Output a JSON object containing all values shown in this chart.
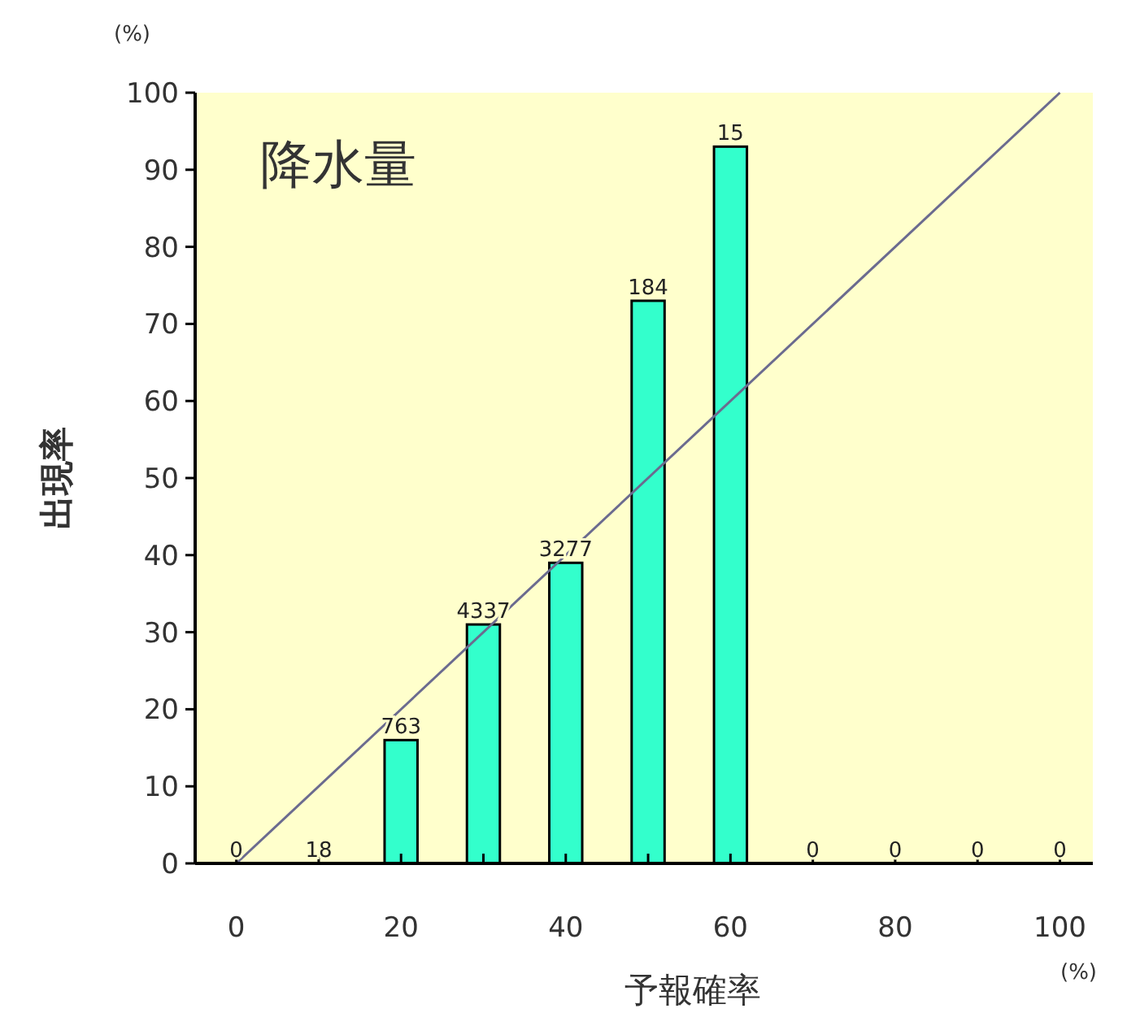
{
  "chart_data": {
    "type": "bar",
    "title": "降水量",
    "xlabel": "予報確率",
    "ylabel": "出現率",
    "x": [
      0,
      10,
      20,
      30,
      40,
      50,
      60,
      70,
      80,
      90,
      100
    ],
    "series": [
      {
        "color": "#33ffcc",
        "values": [
          0,
          0,
          16,
          31,
          39,
          73,
          93,
          0,
          0,
          0,
          0
        ]
      },
      {
        "type": "line",
        "color": "#6b6b8f",
        "x": [
          0,
          100
        ],
        "values": [
          0,
          100
        ]
      }
    ],
    "xlim": [
      -5,
      104
    ],
    "ylim": [
      0,
      100
    ],
    "xticks": [
      0,
      {
        "value": 10,
        "label": null
      },
      20,
      {
        "value": 30,
        "label": null
      },
      40,
      {
        "value": 50,
        "label": null
      },
      60,
      {
        "value": 70,
        "label": null
      },
      80,
      {
        "value": 90,
        "label": null
      },
      100
    ],
    "yticks": [
      0,
      10,
      20,
      30,
      40,
      50,
      60,
      70,
      80,
      90,
      100
    ],
    "annotations": [
      "(%)",
      "(%)",
      {
        "text": "0",
        "x": 0,
        "y": 0
      },
      {
        "text": "18",
        "x": 10,
        "y": 0
      },
      {
        "text": "763",
        "x": 20,
        "y": 16
      },
      {
        "text": "4337",
        "x": 30,
        "y": 31
      },
      {
        "text": "3277",
        "x": 40,
        "y": 39
      },
      {
        "text": "184",
        "x": 50,
        "y": 73
      },
      {
        "text": "15",
        "x": 60,
        "y": 93
      },
      {
        "text": "0",
        "x": 70,
        "y": 0
      },
      {
        "text": "0",
        "x": 80,
        "y": 0
      },
      {
        "text": "0",
        "x": 90,
        "y": 0
      },
      {
        "text": "0",
        "x": 100,
        "y": 0
      }
    ],
    "grid": false
  }
}
